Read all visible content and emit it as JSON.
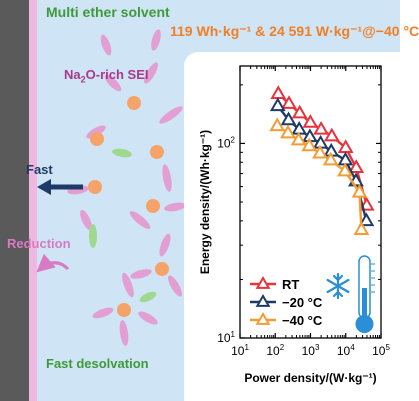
{
  "labels": {
    "solvent": "Multi ether solvent",
    "metric": "119 Wh·kg⁻¹ & 24 591 W·kg⁻¹@−40 °C",
    "sei_prefix": "Na",
    "sei_sub": "2",
    "sei_suffix": "O-rich SEI",
    "fast": "Fast",
    "reduction": "Reduction",
    "fast_desolvation": "Fast desolvation"
  },
  "colors": {
    "electrode": "#5a5a5a",
    "sei_film": "#f0b8e0",
    "background": "#cfe4f5",
    "sodium_ion": "#f6a36a",
    "ether_pink": "#e39fd3",
    "ether_green": "#9fd98f",
    "arrow_navy": "#1f3a66",
    "reduction_pink": "#d87bc4"
  },
  "icons": [
    "thermometer-icon",
    "snowflake-icon",
    "fast-arrow-icon",
    "reduction-arrow-icon"
  ],
  "chart_data": {
    "type": "line",
    "xscale": "log",
    "yscale": "log",
    "xlabel": "Power density/(W·kg⁻¹)",
    "ylabel": "Energy density/(Wh·kg⁻¹)",
    "xlim": [
      10,
      100000
    ],
    "ylim": [
      10,
      250
    ],
    "xticks": [
      {
        "v": 10,
        "b": "10",
        "e": "1"
      },
      {
        "v": 100,
        "b": "10",
        "e": "2"
      },
      {
        "v": 1000,
        "b": "10",
        "e": "3"
      },
      {
        "v": 10000,
        "b": "10",
        "e": "4"
      },
      {
        "v": 100000,
        "b": "10",
        "e": "5"
      }
    ],
    "yticks": [
      {
        "v": 10,
        "b": "10",
        "e": "1"
      },
      {
        "v": 100,
        "b": "10",
        "e": "2"
      }
    ],
    "marker": "open-triangle",
    "legend_position": "bottom-left",
    "series": [
      {
        "name": "RT",
        "color": "#e8323c",
        "x": [
          122,
          246,
          493,
          991,
          2000,
          4030,
          9950,
          19870,
          39500
        ],
        "y": [
          180,
          160,
          143,
          128,
          118,
          109,
          95,
          75,
          48
        ]
      },
      {
        "name": "−20 °C",
        "color": "#1f3a66",
        "x": [
          118,
          238,
          478,
          960,
          1935,
          3880,
          9800,
          19500,
          38500
        ],
        "y": [
          156,
          132,
          118,
          108,
          100,
          91,
          82,
          64,
          40
        ]
      },
      {
        "name": "−40 °C",
        "color": "#f39c33",
        "x": [
          114,
          229,
          460,
          922,
          1860,
          3740,
          9500,
          24591,
          27800
        ],
        "y": [
          123,
          113,
          104,
          97,
          89,
          82,
          72,
          56,
          36
        ]
      }
    ]
  }
}
